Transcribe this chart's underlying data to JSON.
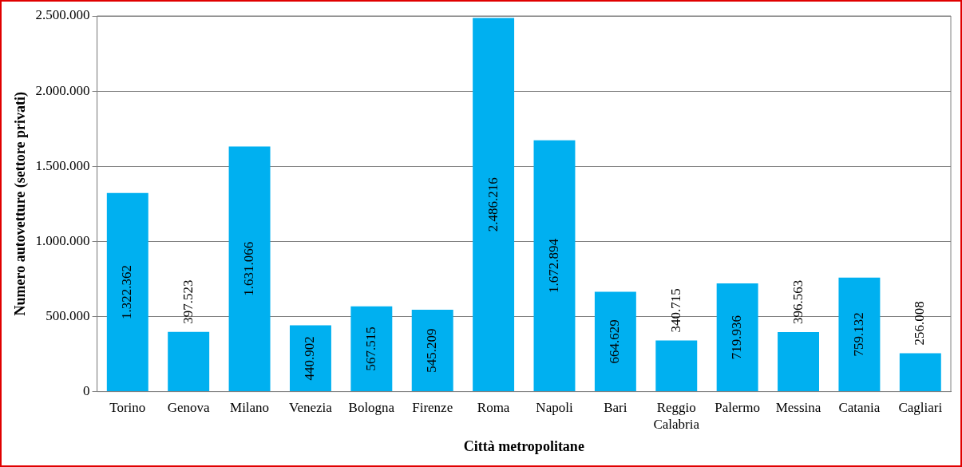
{
  "chart_data": {
    "type": "bar",
    "xlabel": "Città metropolitane",
    "ylabel": "Numero autovetture (settore privati)",
    "categories": [
      "Torino",
      "Genova",
      "Milano",
      "Venezia",
      "Bologna",
      "Firenze",
      "Roma",
      "Napoli",
      "Bari",
      "Reggio Calabria",
      "Palermo",
      "Messina",
      "Catania",
      "Cagliari"
    ],
    "values": [
      1322362,
      397523,
      1631066,
      440902,
      567515,
      545209,
      2486216,
      1672894,
      664629,
      340715,
      719936,
      396563,
      759132,
      256008
    ],
    "value_labels": [
      "1.322.362",
      "397.523",
      "1.631.066",
      "440.902",
      "567.515",
      "545.209",
      "2.486.216",
      "1.672.894",
      "664.629",
      "340.715",
      "719.936",
      "396.563",
      "759.132",
      "256.008"
    ],
    "color": "#00b0f0",
    "ylim": [
      0,
      2500000
    ],
    "yticks": [
      0,
      {
        "value": 500000,
        "label": "500.000"
      },
      {
        "value": 1000000,
        "label": "1.000.000"
      },
      {
        "value": 1500000,
        "label": "1.500.000"
      },
      {
        "value": 2000000,
        "label": "2.000.000"
      },
      {
        "value": 2500000,
        "label": "2.500.000"
      }
    ],
    "grid": "y",
    "legend": false
  }
}
